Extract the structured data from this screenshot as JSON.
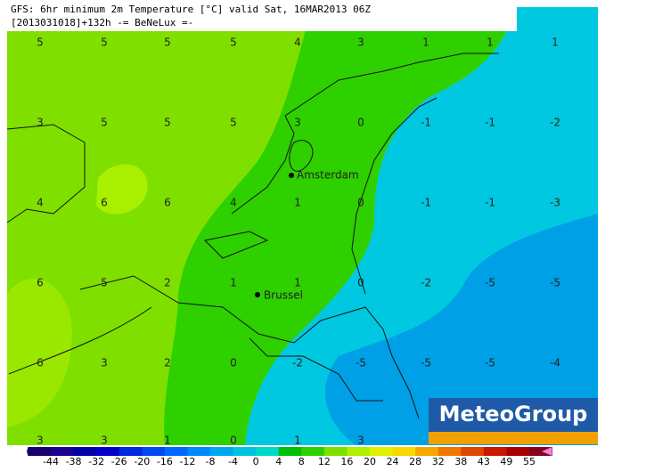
{
  "header": {
    "title": "GFS: 6hr minimum 2m Temperature [°C] valid Sat, 16MAR2013 06Z",
    "subtitle": "[2013031018]+132h -= BeNeLux =-"
  },
  "grid": {
    "rows": [
      [
        5,
        5,
        5,
        5,
        4,
        3,
        1,
        1,
        1
      ],
      [
        3,
        5,
        5,
        5,
        3,
        0,
        -1,
        -1,
        -2
      ],
      [
        4,
        6,
        6,
        4,
        1,
        0,
        -1,
        -1,
        -3
      ],
      [
        6,
        5,
        2,
        1,
        1,
        0,
        -2,
        -5,
        -5
      ],
      [
        6,
        3,
        2,
        0,
        -2,
        -5,
        -5,
        -5,
        -4
      ],
      [
        3,
        3,
        1,
        0,
        1,
        3
      ]
    ]
  },
  "cities": [
    {
      "label": "Amsterdam"
    },
    {
      "label": "Brussel"
    }
  ],
  "legend": {
    "labels": [
      -44,
      -38,
      -32,
      -26,
      -20,
      -16,
      -12,
      -8,
      -4,
      0,
      4,
      8,
      12,
      16,
      20,
      24,
      28,
      32,
      38,
      43,
      49,
      55
    ]
  },
  "logo": {
    "text": "MeteoGroup"
  }
}
